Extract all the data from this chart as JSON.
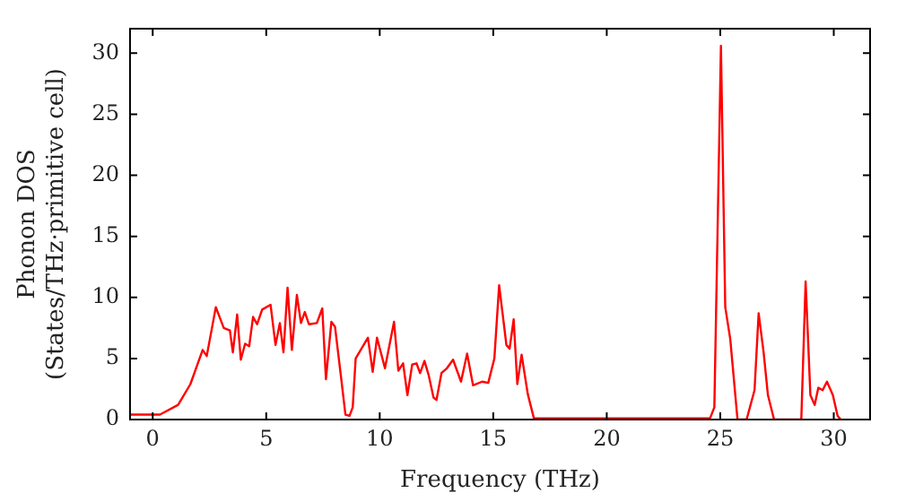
{
  "chart_data": {
    "type": "line",
    "xlabel": "Frequency (THz)",
    "ylabel": "Phonon DOS\n(States/THz·primitive cell)",
    "xlim": [
      -1,
      31.6
    ],
    "ylim": [
      0,
      32
    ],
    "xticks": [
      0,
      5,
      10,
      15,
      20,
      25,
      30
    ],
    "yticks": [
      0,
      5,
      10,
      15,
      20,
      25,
      30
    ],
    "grid": false,
    "legend": false,
    "marker": "none",
    "line_style": "solid",
    "x": [
      -1,
      -0.88,
      0.32,
      1.12,
      1.66,
      2.2,
      2.38,
      2.78,
      3.13,
      3.4,
      3.53,
      3.72,
      3.88,
      4.07,
      4.25,
      4.42,
      4.6,
      4.82,
      5.19,
      5.41,
      5.6,
      5.76,
      5.94,
      6.13,
      6.35,
      6.53,
      6.7,
      6.88,
      7.23,
      7.47,
      7.63,
      7.87,
      8.03,
      8.3,
      8.49,
      8.67,
      8.81,
      8.94,
      9.29,
      9.48,
      9.69,
      9.88,
      10.23,
      10.63,
      10.82,
      11.03,
      11.22,
      11.43,
      11.62,
      11.78,
      11.97,
      12.16,
      12.37,
      12.5,
      12.72,
      12.96,
      13.23,
      13.58,
      13.85,
      14.11,
      14.51,
      14.78,
      15.05,
      15.26,
      15.58,
      15.72,
      15.9,
      16.06,
      16.25,
      16.52,
      16.79,
      24.55,
      24.74,
      25.03,
      25.22,
      25.44,
      25.76,
      26.16,
      26.51,
      26.69,
      26.91,
      27.1,
      27.37,
      28.57,
      28.76,
      28.97,
      29.16,
      29.32,
      29.51,
      29.7,
      29.96,
      30.17,
      30.31
    ],
    "series": [
      {
        "color": "#ff0000",
        "values": [
          0.4,
          0.4,
          0.4,
          1.2,
          2.9,
          5.7,
          5.2,
          9.2,
          7.5,
          7.3,
          5.5,
          8.6,
          4.9,
          6.2,
          6.0,
          8.4,
          7.8,
          9.0,
          9.4,
          6.1,
          7.9,
          5.5,
          10.8,
          5.7,
          10.2,
          7.9,
          8.8,
          7.8,
          7.9,
          9.1,
          3.3,
          8.0,
          7.6,
          3.4,
          0.4,
          0.3,
          1.0,
          5.0,
          6.1,
          6.7,
          3.9,
          6.7,
          4.2,
          8.0,
          4.0,
          4.6,
          2.0,
          4.5,
          4.6,
          3.8,
          4.8,
          3.6,
          1.8,
          1.6,
          3.8,
          4.2,
          4.9,
          3.1,
          5.4,
          2.8,
          3.1,
          3.0,
          5.0,
          11.0,
          6.1,
          5.8,
          8.2,
          2.9,
          5.3,
          2.1,
          0.1,
          0.1,
          1.0,
          30.6,
          9.2,
          6.6,
          0,
          0,
          2.4,
          8.7,
          5.5,
          2.0,
          0,
          0,
          11.3,
          2.0,
          1.2,
          2.6,
          2.4,
          3.1,
          2.0,
          0.3,
          0
        ]
      }
    ]
  }
}
